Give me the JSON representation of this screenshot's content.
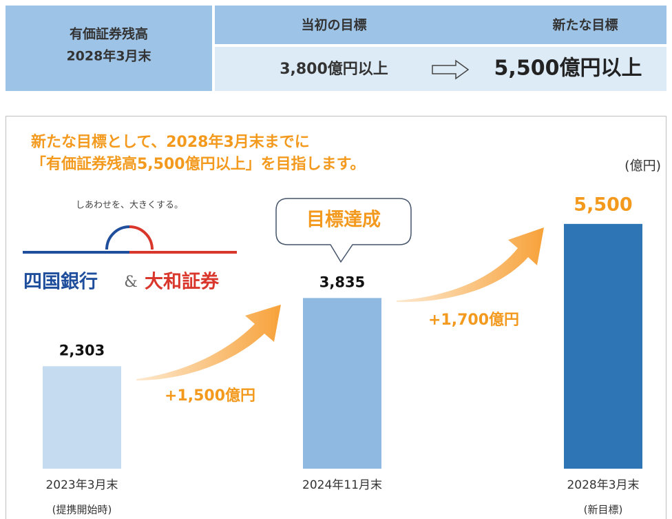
{
  "header": {
    "label": [
      "有価証券残高",
      "2028年3月末"
    ],
    "columns": [
      "当初の目標",
      "新たな目標"
    ],
    "values": [
      "3,800億円以上",
      "5,500億円以上"
    ]
  },
  "chart_data": {
    "type": "bar",
    "title": [
      "新たな目標として、2028年3月末までに",
      "「有価証券残高5,500億円以上」を目指します。"
    ],
    "unit": "(億円)",
    "categories": [
      "2023年3月末",
      "2024年11月末",
      "2028年3月末"
    ],
    "category_notes": [
      "(提携開始時)",
      "",
      "(新目標)"
    ],
    "values": [
      2303,
      3835,
      5500
    ],
    "value_labels": [
      "2,303",
      "3,835",
      "5,500"
    ],
    "colors": [
      "#c5dbf0",
      "#8fb9e0",
      "#2e75b6"
    ],
    "ylim": [
      0,
      10500
    ],
    "annotations": [
      "+1,500億円",
      "+1,700億円",
      "目標達成"
    ],
    "logo": {
      "tagline": "しあわせを、大きくする。",
      "left": "四国銀行",
      "amp": "&",
      "right": "大和証券"
    }
  }
}
